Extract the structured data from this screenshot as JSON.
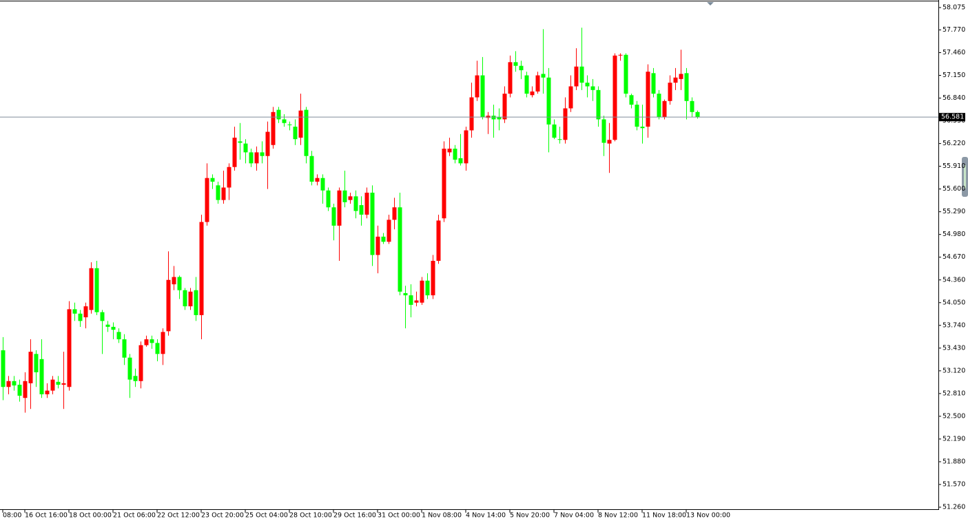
{
  "chart_data": {
    "type": "candlestick",
    "up_color": "#ff0000",
    "down_color": "#00ff00",
    "categories": [
      "08:00",
      null,
      null,
      null,
      "16 Oct 16:00",
      null,
      null,
      null,
      null,
      null,
      null,
      null,
      "18 Oct 00:00",
      null,
      null,
      null,
      null,
      null,
      null,
      null,
      "21 Oct 06:00",
      null,
      null,
      null,
      null,
      null,
      null,
      null,
      "22 Oct 12:00",
      null,
      null,
      null,
      null,
      null,
      null,
      null,
      "23 Oct 20:00",
      null,
      null,
      null,
      null,
      null,
      null,
      null,
      "25 Oct 04:00",
      null,
      null,
      null,
      null,
      null,
      null,
      null,
      "28 Oct 10:00",
      null,
      null,
      null,
      null,
      null,
      null,
      null,
      "29 Oct 16:00",
      null,
      null,
      null,
      null,
      null,
      null,
      null,
      "31 Oct 00:00",
      null,
      null,
      null,
      null,
      null,
      null,
      null,
      "1 Nov 08:00",
      null,
      null,
      null,
      null,
      null,
      null,
      null,
      "4 Nov 14:00",
      null,
      null,
      null,
      null,
      null,
      null,
      null,
      "5 Nov 20:00",
      null,
      null,
      null,
      null,
      null,
      null,
      null,
      "7 Nov 04:00",
      null,
      null,
      null,
      null,
      null,
      null,
      null,
      "8 Nov 12:00",
      null,
      null,
      null,
      null,
      null,
      null,
      null,
      "11 Nov 18:00",
      null,
      null,
      null,
      null,
      null,
      null,
      null,
      "13 Nov 00:00",
      null,
      null
    ],
    "open": [
      53.4,
      52.9,
      52.98,
      52.93,
      52.75,
      52.95,
      53.35,
      53.28,
      52.8,
      52.85,
      52.97,
      52.93,
      52.9,
      53.96,
      53.9,
      53.85,
      53.95,
      54.52,
      53.92,
      53.75,
      53.72,
      53.65,
      53.55,
      53.3,
      53.05,
      52.98,
      53.47,
      53.55,
      53.5,
      53.35,
      53.66,
      54.3,
      54.4,
      54.22,
      54.0,
      54.22,
      53.88,
      55.15,
      55.75,
      55.65,
      55.45,
      55.62,
      55.9,
      56.25,
      56.22,
      56.1,
      55.95,
      56.1,
      56.05,
      56.2,
      56.68,
      56.55,
      56.48,
      56.45,
      56.3,
      56.68,
      56.05,
      55.7,
      55.75,
      55.58,
      55.35,
      55.1,
      55.58,
      55.45,
      55.5,
      55.38,
      55.25,
      55.55,
      54.7,
      54.95,
      54.88,
      55.18,
      55.35,
      54.18,
      54.15,
      54.05,
      54.05,
      54.35,
      54.15,
      54.62,
      55.2,
      56.1,
      56.15,
      56.02,
      55.95,
      56.4,
      56.85,
      57.15,
      56.57,
      56.6,
      56.58,
      56.55,
      56.9,
      57.33,
      57.28,
      57.15,
      56.88,
      56.93,
      57.17,
      57.12,
      56.48,
      56.28,
      56.27,
      56.7,
      57.0,
      57.27,
      57.05,
      57.0,
      56.95,
      56.55,
      56.22,
      56.27,
      57.42,
      57.43,
      56.88,
      56.75,
      56.45,
      56.45,
      57.18,
      56.9,
      56.58,
      56.8,
      57.05,
      57.1,
      57.18,
      56.8,
      56.65
    ],
    "high": [
      53.58,
      53.05,
      53.05,
      53.0,
      53.1,
      53.55,
      53.4,
      53.55,
      52.95,
      53.05,
      53.05,
      53.38,
      54.07,
      54.05,
      53.95,
      54.05,
      54.6,
      54.62,
      53.95,
      53.8,
      53.78,
      53.7,
      53.62,
      53.35,
      53.15,
      53.52,
      53.6,
      53.6,
      53.55,
      53.7,
      54.75,
      54.55,
      54.42,
      54.25,
      54.25,
      54.4,
      55.25,
      55.95,
      55.8,
      55.7,
      55.85,
      55.95,
      56.45,
      56.5,
      56.28,
      56.15,
      56.18,
      56.25,
      56.52,
      56.72,
      56.72,
      56.62,
      56.52,
      56.55,
      56.9,
      56.72,
      56.12,
      55.8,
      55.8,
      55.62,
      55.4,
      55.62,
      55.85,
      55.55,
      55.58,
      55.5,
      55.62,
      55.65,
      55.1,
      55.0,
      55.25,
      55.48,
      55.55,
      54.28,
      54.3,
      54.2,
      54.4,
      54.45,
      54.7,
      55.25,
      56.25,
      56.3,
      56.2,
      56.35,
      56.45,
      57.05,
      57.35,
      57.4,
      56.65,
      56.75,
      56.7,
      57.0,
      57.42,
      57.48,
      57.35,
      57.2,
      57.0,
      57.2,
      57.78,
      57.25,
      56.55,
      56.45,
      56.85,
      57.15,
      57.52,
      57.8,
      57.15,
      57.1,
      57.0,
      56.6,
      56.5,
      57.45,
      57.45,
      57.45,
      56.9,
      56.8,
      56.75,
      57.3,
      57.25,
      56.95,
      56.82,
      57.15,
      57.25,
      57.5,
      57.25,
      56.85,
      56.67
    ],
    "low": [
      52.72,
      52.8,
      52.85,
      52.7,
      52.55,
      52.6,
      52.9,
      52.75,
      52.75,
      52.8,
      52.88,
      52.6,
      52.85,
      53.8,
      53.72,
      53.7,
      53.9,
      53.88,
      53.35,
      53.65,
      53.55,
      53.5,
      53.2,
      52.75,
      52.9,
      52.88,
      53.45,
      53.42,
      53.25,
      53.2,
      53.6,
      54.22,
      54.1,
      53.95,
      53.95,
      53.8,
      53.55,
      55.1,
      55.6,
      55.4,
      55.4,
      55.45,
      55.85,
      56.0,
      55.95,
      55.9,
      55.85,
      55.95,
      55.6,
      56.15,
      56.5,
      56.45,
      56.4,
      56.2,
      56.2,
      55.95,
      55.65,
      55.65,
      55.4,
      55.3,
      54.9,
      54.62,
      55.35,
      55.4,
      55.2,
      55.1,
      55.2,
      54.55,
      54.45,
      54.85,
      54.85,
      55.05,
      54.15,
      53.7,
      53.85,
      54.0,
      54.02,
      54.1,
      54.1,
      54.58,
      55.15,
      56.05,
      55.95,
      55.92,
      55.85,
      56.3,
      56.8,
      56.55,
      56.35,
      56.3,
      56.4,
      56.5,
      56.85,
      57.2,
      57.1,
      56.85,
      56.85,
      56.9,
      56.9,
      56.1,
      56.28,
      56.22,
      56.22,
      56.65,
      56.95,
      56.95,
      56.85,
      56.8,
      56.45,
      56.05,
      55.82,
      56.25,
      57.35,
      56.85,
      56.7,
      56.4,
      56.22,
      56.3,
      56.85,
      56.55,
      56.55,
      56.75,
      56.95,
      56.95,
      56.55,
      56.58,
      56.56
    ],
    "close": [
      52.9,
      52.98,
      52.92,
      52.78,
      52.98,
      53.38,
      53.1,
      52.8,
      52.85,
      53.0,
      52.93,
      52.95,
      53.96,
      53.9,
      53.8,
      54.0,
      54.52,
      53.92,
      53.8,
      53.72,
      53.68,
      53.55,
      53.3,
      53.0,
      52.98,
      53.47,
      53.55,
      53.5,
      53.35,
      53.65,
      54.36,
      54.4,
      54.22,
      54.0,
      54.2,
      53.88,
      55.15,
      55.75,
      55.7,
      55.45,
      55.62,
      55.9,
      56.3,
      56.23,
      56.1,
      55.95,
      56.1,
      56.05,
      56.38,
      56.65,
      56.55,
      56.5,
      56.47,
      56.28,
      56.67,
      56.05,
      55.7,
      55.75,
      55.58,
      55.35,
      55.1,
      55.58,
      55.42,
      55.5,
      55.3,
      55.25,
      55.55,
      54.7,
      54.95,
      54.88,
      55.18,
      55.35,
      54.2,
      54.15,
      54.02,
      54.08,
      54.35,
      54.15,
      54.62,
      55.17,
      56.15,
      56.15,
      56.0,
      55.95,
      56.4,
      56.85,
      57.15,
      56.58,
      56.6,
      56.55,
      56.55,
      56.9,
      57.33,
      57.28,
      57.22,
      56.9,
      56.93,
      57.15,
      57.12,
      56.48,
      56.3,
      56.27,
      56.7,
      57.0,
      57.27,
      57.05,
      57.0,
      56.95,
      56.55,
      56.23,
      56.27,
      57.42,
      57.43,
      56.9,
      56.75,
      56.45,
      56.43,
      57.2,
      56.9,
      56.58,
      56.8,
      57.05,
      57.12,
      57.17,
      56.8,
      56.65,
      56.58
    ],
    "current_price": 56.581,
    "ylim": [
      51.232,
      58.178
    ],
    "yticks": [
      58.075,
      {
        "value": 57.77,
        "label": "57.770"
      },
      {
        "value": 57.46,
        "label": "57.460"
      },
      {
        "value": 57.15,
        "label": "57.150"
      },
      {
        "value": 56.84,
        "label": "56.840"
      },
      {
        "value": 56.53,
        "label": "56.530"
      },
      {
        "value": 56.22,
        "label": "56.220"
      },
      {
        "value": 55.91,
        "label": "55.910"
      },
      {
        "value": 55.6,
        "label": "55.600"
      },
      {
        "value": 55.29,
        "label": "55.290"
      },
      {
        "value": 54.98,
        "label": "54.980"
      },
      {
        "value": 54.67,
        "label": "54.670"
      },
      {
        "value": 54.36,
        "label": "54.360"
      },
      {
        "value": 54.05,
        "label": "54.050"
      },
      {
        "value": 53.74,
        "label": "53.740"
      },
      {
        "value": 53.43,
        "label": "53.430"
      },
      {
        "value": 53.12,
        "label": "53.120"
      },
      {
        "value": 52.81,
        "label": "52.810"
      },
      {
        "value": 52.5,
        "label": "52.500"
      },
      {
        "value": 52.19,
        "label": "52.190"
      },
      {
        "value": 51.88,
        "label": "51.880"
      },
      {
        "value": 51.57,
        "label": "51.570"
      },
      {
        "value": 51.26,
        "label": "51.260"
      }
    ]
  }
}
